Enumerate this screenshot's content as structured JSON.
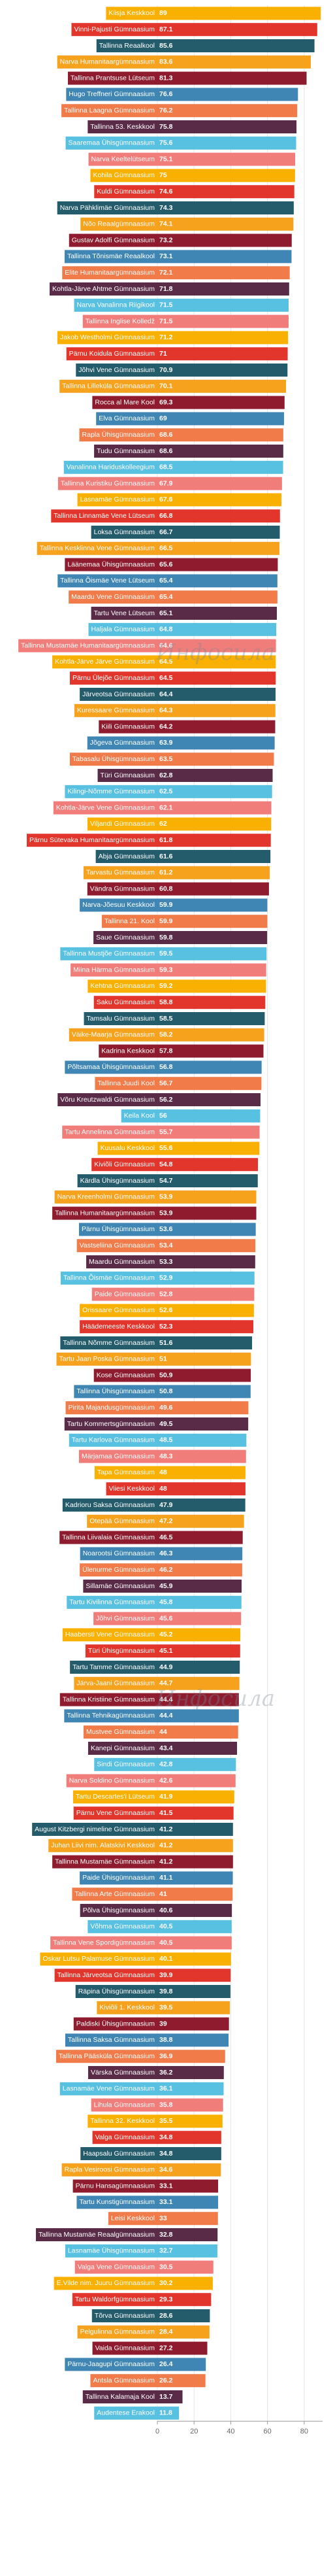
{
  "chart_data": {
    "type": "barh",
    "watermark": "Инфосила",
    "categories": [
      "Kiisja Keskkool",
      "Vinni-Pajusti Gümnaasium",
      "Tallinna Reaalkool",
      "Narva Humanitaargümnaasium",
      "Tallinna Prantsuse Lütseum",
      "Hugo Treffneri Gümnaasium",
      "Tallinna Laagna Gümnaasium",
      "Tallinna 53. Keskkool",
      "Saaremaa Ühisgümnaasium",
      "Narva Keeltelütseum",
      "Kohila Gümnaasium",
      "Kuldi Gümnaasium",
      "Narva Pähklimäe Gümnaasium",
      "Nõo Reaalgümnaasium",
      "Gustav Adolfi Gümnaasium",
      "Tallinna Tõnismäe Reaalkool",
      "Elite Humanitaargümnaasium",
      "Kohtla-Järve Ahtme Gümnaasium",
      "Narva Vanalinna Riigikool",
      "Tallinna Inglise Kolledž",
      "Jakob Westholmi Gümnaasium",
      "Pärnu Koidula Gümnaasium",
      "Jõhvi Vene Gümnaasium",
      "Tallinna Lilleküla Gümnaasium",
      "Rocca al Mare Kool",
      "Elva Gümnaasium",
      "Rapla Ühisgümnaasium",
      "Tudu Gümnaasium",
      "Vanalinna Hariduskolleegium",
      "Tallinna Kuristiku Gümnaasium",
      "Lasnamäe Gümnaasium",
      "Tallinna Linnamäe Vene Lütseum",
      "Loksa Gümnaasium",
      "Tallinna Kesklinna Vene Gümnaasium",
      "Läänemaa Ühisgümnaasium",
      "Tallinna Õismäe Vene Lütseum",
      "Maardu Vene Gümnaasium",
      "Tartu Vene Lütseum",
      "Haljala Gümnaasium",
      "Tallinna Mustamäe Humanitaargümnaasium",
      "Kohtla-Järve Järve Gümnaasium",
      "Pärnu Ülejõe Gümnaasium",
      "Järveotsa Gümnaasium",
      "Kuressaare Gümnaasium",
      "Kiili Gümnaasium",
      "Jõgeva Gümnaasium",
      "Tabasalu Ühisgümnaasium",
      "Türi Gümnaasium",
      "Kilingi-Nõmme Gümnaasium",
      "Kohtla-Järve Vene Gümnaasium",
      "Viljandi Gümnaasium",
      "Pärnu Sütevaka Humanitaargümnaasium",
      "Abja Gümnaasium",
      "Tarvastu Gümnaasium",
      "Vändra Gümnaasium",
      "Narva-Jõesuu Keskkool",
      "Tallinna 21. Kool",
      "Saue Gümnaasium",
      "Tallinna Mustjõe Gümnaasium",
      "Miina Härma Gümnaasium",
      "Kehtna Gümnaasium",
      "Saku Gümnaasium",
      "Tamsalu Gümnaasium",
      "Väike-Maarja Gümnaasium",
      "Kadrina Keskkool",
      "Põltsamaa Ühisgümnaasium",
      "Tallinna Juudi Kool",
      "Võru Kreutzwaldi Gümnaasium",
      "Keila Kool",
      "Tartu Annelinna Gümnaasium",
      "Kuusalu Keskkool",
      "Kiviõli Gümnaasium",
      "Kärdla Ühisgümnaasium",
      "Narva Kreenholmi Gümnaasium",
      "Tallinna Humanitaargümnaasium",
      "Pärnu Ühisgümnaasium",
      "Vastseliina Gümnaasium",
      "Maardu Gümnaasium",
      "Tallinna Õismäe Gümnaasium",
      "Paide Gümnaasium",
      "Orissaare Gümnaasium",
      "Häädemeeste Keskkool",
      "Tallinna Nõmme Gümnaasium",
      "Tartu Jaan Poska Gümnaasium",
      "Kose Gümnaasium",
      "Tallinna Ühisgümnaasium",
      "Pirita Majandusgümnaasium",
      "Tartu Kommertsgümnaasium",
      "Tartu Karlova Gümnaasium",
      "Märjamaa Gümnaasium",
      "Tapa Gümnaasium",
      "Viiesi Keskkool",
      "Kadrioru Saksa Gümnaasium",
      "Otepää Gümnaasium",
      "Tallinna Liivalaia Gümnaasium",
      "Noarootsi Gümnaasium",
      "Ülenurme Gümnaasium",
      "Sillamäe Gümnaasium",
      "Tartu Kivilinna Gümnaasium",
      "Jõhvi Gümnaasium",
      "Haabersti Vene Gümnaasium",
      "Türi Ühisgümnaasium",
      "Tartu Tamme Gümnaasium",
      "Järva-Jaani Gümnaasium",
      "Tallinna Kristiine Gümnaasium",
      "Tallinna Tehnikagümnaasium",
      "Mustvee Gümnaasium",
      "Kanepi Gümnaasium",
      "Sindi Gümnaasium",
      "Narva Soldino Gümnaasium",
      "Tartu Descartes'i Lütseum",
      "Pärnu Vene Gümnaasium",
      "August Kitzbergi nimeline Gümnaasium",
      "Juhan Liivi nim. Alatskivi Keskkool",
      "Tallinna Mustamäe Gümnaasium",
      "Paide Ühisgümnaasium",
      "Tallinna Arte Gümnaasium",
      "Põlva Ühisgümnaasium",
      "Võhma Gümnaasium",
      "Tallinna Vene Spordigümnaasium",
      "Oskar Lutsu Palamuse Gümnaasium",
      "Tallinna Järveotsa Gümnaasium",
      "Räpina Ühisgümnaasium",
      "Kiviõli 1. Keskkool",
      "Paldiski Ühisgümnaasium",
      "Tallinna Saksa Gümnaasium",
      "Tallinna Pääsküla Gümnaasium",
      "Värska Gümnaasium",
      "Lasnamäe Vene Gümnaasium",
      "Lihula Gümnaasium",
      "Tallinna 32. Keskkool",
      "Valga Gümnaasium",
      "Haapsalu Gümnaasium",
      "Rapla Vesiroosi Gümnaasium",
      "Pärnu Hansagümnaasium",
      "Tartu Kunstigümnaasium",
      "Leisi Keskkool",
      "Tallinna Mustamäe Reaalgümnaasium",
      "Lasnamäe Ühisgümnaasium",
      "Valga Vene Gümnaasium",
      "E.Vilde nim. Juuru Gümnaasium",
      "Tartu Waldorfgümnaasium",
      "Tõrva Gümnaasium",
      "Pelgulinna Gümnaasium",
      "Vaida Gümnaasium",
      "Pärnu-Jaagupi Gümnaasium",
      "Antsla Gümnaasium",
      "Tallinna Kalamaja Kool",
      "Audentese Erakool"
    ],
    "values": [
      89,
      87.1,
      85.6,
      83.6,
      81.3,
      76.6,
      76.2,
      75.8,
      75.6,
      75.1,
      75,
      74.6,
      74.3,
      74.1,
      73.2,
      73.1,
      72.1,
      71.8,
      71.5,
      71.5,
      71.2,
      71,
      70.9,
      70.1,
      69.3,
      69,
      68.6,
      68.6,
      68.5,
      67.9,
      67.6,
      66.8,
      66.7,
      66.5,
      65.6,
      65.4,
      65.4,
      65.1,
      64.8,
      64.6,
      64.5,
      64.5,
      64.4,
      64.3,
      64.2,
      63.9,
      63.5,
      62.8,
      62.5,
      62.1,
      62,
      61.8,
      61.6,
      61.2,
      60.8,
      59.9,
      59.9,
      59.8,
      59.5,
      59.3,
      59.2,
      58.8,
      58.5,
      58.2,
      57.8,
      56.8,
      56.7,
      56.2,
      56,
      55.7,
      55.6,
      54.8,
      54.7,
      53.9,
      53.9,
      53.6,
      53.4,
      53.3,
      52.9,
      52.8,
      52.6,
      52.3,
      51.6,
      51,
      50.9,
      50.8,
      49.6,
      49.5,
      48.5,
      48.3,
      48,
      48,
      47.9,
      47.2,
      46.5,
      46.3,
      46.2,
      45.9,
      45.8,
      45.6,
      45.2,
      45.1,
      44.9,
      44.7,
      44.4,
      44.4,
      44,
      43.4,
      42.8,
      42.6,
      41.9,
      41.5,
      41.2,
      41.2,
      41.2,
      41.1,
      41,
      40.6,
      40.5,
      40.5,
      40.1,
      39.9,
      39.8,
      39.5,
      39,
      38.8,
      36.9,
      36.2,
      36.1,
      35.8,
      35.5,
      34.8,
      34.8,
      34.6,
      33.1,
      33.1,
      33,
      32.8,
      32.7,
      30.5,
      30.2,
      29.3,
      28.6,
      28.4,
      27.2,
      26.4,
      26.2,
      13.7,
      11.8
    ],
    "palette": [
      "#f9b000",
      "#e2352b",
      "#245c6c",
      "#f6a21c",
      "#8e1b2e",
      "#3f86b4",
      "#f27b4a",
      "#5a2b47",
      "#58c0e0",
      "#f17d7a"
    ],
    "xlim": [
      0,
      90
    ],
    "xticks": [
      0,
      20,
      40,
      60,
      80
    ],
    "grid": true
  }
}
